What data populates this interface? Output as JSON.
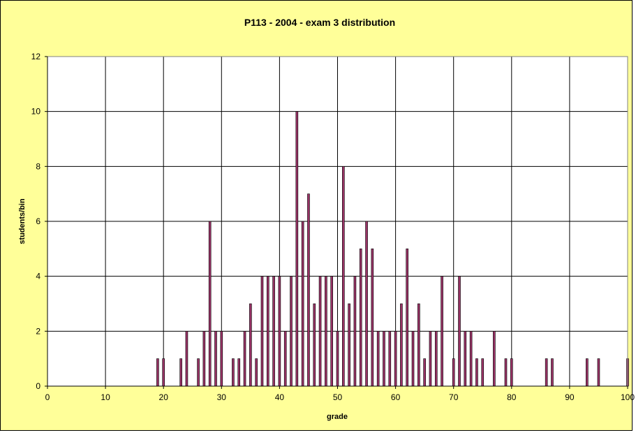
{
  "chart_data": {
    "type": "bar",
    "title": "P113 - 2004 - exam 3 distribution",
    "xlabel": "grade",
    "ylabel": "students/bin",
    "xlim": [
      0,
      100
    ],
    "ylim": [
      0,
      12
    ],
    "x_ticks": [
      0,
      10,
      20,
      30,
      40,
      50,
      60,
      70,
      80,
      90,
      100
    ],
    "y_ticks": [
      0,
      2,
      4,
      6,
      8,
      10,
      12
    ],
    "grid": true,
    "legend": "none",
    "x": [
      19,
      20,
      23,
      24,
      26,
      27,
      28,
      29,
      30,
      32,
      33,
      34,
      35,
      36,
      37,
      38,
      39,
      40,
      41,
      42,
      43,
      44,
      45,
      46,
      47,
      48,
      49,
      50,
      51,
      52,
      53,
      54,
      55,
      56,
      57,
      58,
      59,
      60,
      61,
      62,
      63,
      64,
      65,
      66,
      67,
      68,
      70,
      71,
      72,
      73,
      74,
      75,
      77,
      79,
      80,
      86,
      87,
      93,
      95,
      100
    ],
    "values": [
      1,
      1,
      1,
      2,
      1,
      2,
      6,
      2,
      2,
      1,
      1,
      2,
      3,
      1,
      4,
      4,
      4,
      4,
      2,
      4,
      10,
      6,
      7,
      3,
      4,
      4,
      4,
      2,
      8,
      3,
      4,
      5,
      6,
      5,
      2,
      2,
      2,
      2,
      3,
      5,
      2,
      3,
      1,
      2,
      2,
      4,
      1,
      4,
      2,
      2,
      1,
      1,
      2,
      1,
      1,
      1,
      1,
      1,
      1,
      1
    ]
  },
  "colors": {
    "background": "#ffff99",
    "plot_area": "#ffffff",
    "bar_fill": "#993366",
    "bar_edge": "#000000",
    "grid": "#000000"
  }
}
